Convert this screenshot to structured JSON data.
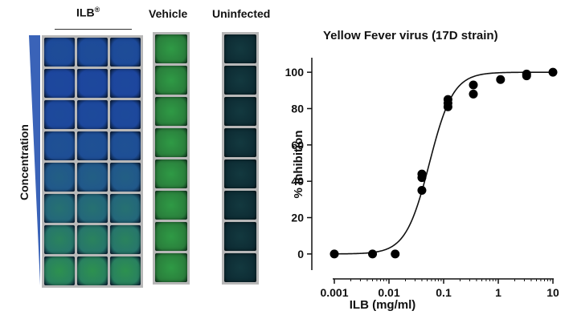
{
  "labels": {
    "ilb": "ILB",
    "ilb_mark": "®",
    "vehicle": "Vehicle",
    "uninfected": "Uninfected",
    "concentration": "Concentration"
  },
  "colors": {
    "wedge": "#3a63b8",
    "well_blue": "#1b3fa6",
    "well_green": "#2f9a45",
    "well_dark": "#0d2b33"
  },
  "plates": {
    "ilb_green_fraction": [
      0.15,
      0.1,
      0.12,
      0.2,
      0.35,
      0.55,
      0.75,
      0.9
    ],
    "vehicle_rows": 8,
    "uninfected_rows": 8
  },
  "chart_data": {
    "type": "scatter",
    "title": "Yellow Fever virus  (17D strain)",
    "xlabel": "ILB (mg/ml)",
    "ylabel": "% Inhibition",
    "xscale": "log",
    "xlim": [
      0.001,
      10
    ],
    "ylim": [
      -8,
      108
    ],
    "xticks": [
      0.001,
      0.01,
      0.1,
      1,
      10
    ],
    "xtick_labels": [
      "0.001",
      "0.01",
      "0.1",
      "1",
      "10"
    ],
    "yticks": [
      0,
      20,
      40,
      60,
      80,
      100
    ],
    "ytick_labels": [
      "0",
      "20",
      "40",
      "60",
      "80",
      "100"
    ],
    "points": [
      {
        "x": 0.001,
        "y": 0
      },
      {
        "x": 0.005,
        "y": 0
      },
      {
        "x": 0.013,
        "y": 0
      },
      {
        "x": 0.04,
        "y": 35
      },
      {
        "x": 0.04,
        "y": 42
      },
      {
        "x": 0.04,
        "y": 44
      },
      {
        "x": 0.12,
        "y": 81
      },
      {
        "x": 0.12,
        "y": 83
      },
      {
        "x": 0.12,
        "y": 85
      },
      {
        "x": 0.35,
        "y": 88
      },
      {
        "x": 0.35,
        "y": 93
      },
      {
        "x": 1.1,
        "y": 96
      },
      {
        "x": 3.3,
        "y": 98
      },
      {
        "x": 3.3,
        "y": 99
      },
      {
        "x": 10,
        "y": 100
      }
    ],
    "fit": {
      "model": "sigmoid",
      "bottom": 0,
      "top": 100,
      "ec50": 0.055,
      "hill": 2.0
    }
  }
}
